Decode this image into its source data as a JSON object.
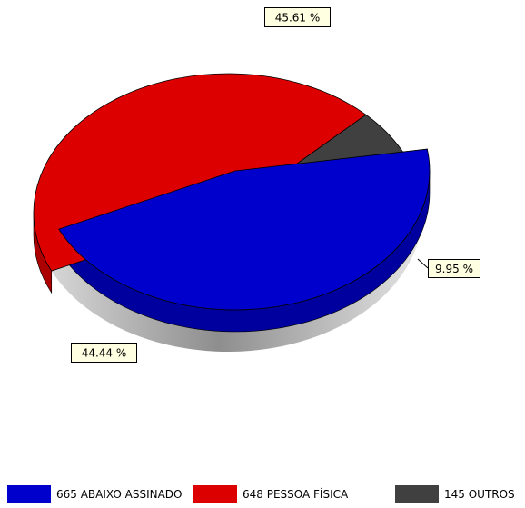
{
  "chart_data": {
    "type": "pie",
    "style": "3d-exploded",
    "slices": [
      {
        "label": "665 ABAIXO ASSINADO",
        "value": 665,
        "percent_label": "45.61 %",
        "color": "#0000cc"
      },
      {
        "label": "648 PESSOA FÍSICA",
        "value": 648,
        "percent_label": "44.44 %",
        "color": "#dd0000"
      },
      {
        "label": "145 OUTROS",
        "value": 145,
        "percent_label": "9.95 %",
        "color": "#404040"
      }
    ],
    "legend_position": "bottom"
  }
}
